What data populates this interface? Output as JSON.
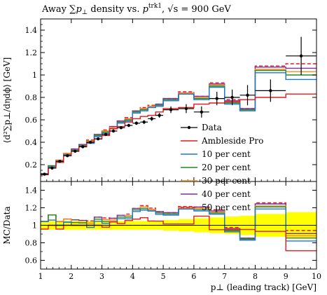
{
  "chart_data": {
    "type": "line",
    "title": "Away ∑p⊥ density vs. p⊥trk1, √s = 900 GeV",
    "title_parts": {
      "lead": "Away ∑",
      "p": "p",
      "sub": "⊥",
      "mid": " density vs. ",
      "sup": "trk1",
      "tail": ", √s = 900 GeV"
    },
    "xlabel": "p⊥ (leading track) [GeV]",
    "ylabel_top": "⟨d²∑p⊥/dηdϕ⟩ [GeV]",
    "ylabel_bottom": "MC/Data",
    "xlim": [
      1,
      10
    ],
    "ylim_top": [
      0.05,
      1.5
    ],
    "ylim_bottom": [
      0.5,
      1.5
    ],
    "legend_placement": "center-right",
    "x_ticks": [
      "1",
      "2",
      "3",
      "4",
      "5",
      "6",
      "7",
      "8",
      "9",
      "10"
    ],
    "y_ticks_top": [
      "0.2",
      "0.4",
      "0.6",
      "0.8",
      "1",
      "1.2",
      "1.4"
    ],
    "y_ticks_bottom": [
      "0.6",
      "0.8",
      "1",
      "1.2",
      "1.4"
    ],
    "bin_edges": [
      1.0,
      1.25,
      1.5,
      1.75,
      2.0,
      2.25,
      2.5,
      2.75,
      3.0,
      3.25,
      3.5,
      3.75,
      4.0,
      4.25,
      4.5,
      4.75,
      5.0,
      5.5,
      6.0,
      6.5,
      7.0,
      7.5,
      8.0,
      9.0,
      10.0
    ],
    "data": {
      "name": "Data",
      "x": [
        1.125,
        1.375,
        1.625,
        1.875,
        2.125,
        2.375,
        2.625,
        2.875,
        3.125,
        3.375,
        3.625,
        3.875,
        4.125,
        4.375,
        4.625,
        4.875,
        5.25,
        5.75,
        6.25,
        6.75,
        7.25,
        7.75,
        8.5,
        9.5
      ],
      "y": [
        0.115,
        0.17,
        0.23,
        0.28,
        0.32,
        0.36,
        0.4,
        0.43,
        0.47,
        0.5,
        0.53,
        0.55,
        0.57,
        0.58,
        0.61,
        0.64,
        0.69,
        0.7,
        0.67,
        0.79,
        0.8,
        0.82,
        0.86,
        1.17
      ],
      "yerr": [
        0.005,
        0.005,
        0.005,
        0.006,
        0.006,
        0.007,
        0.008,
        0.009,
        0.01,
        0.011,
        0.012,
        0.014,
        0.015,
        0.017,
        0.019,
        0.021,
        0.03,
        0.04,
        0.05,
        0.06,
        0.07,
        0.09,
        0.1,
        0.17
      ],
      "ratio_band": [
        0.05,
        0.05,
        0.05,
        0.05,
        0.05,
        0.05,
        0.05,
        0.05,
        0.05,
        0.05,
        0.05,
        0.05,
        0.05,
        0.05,
        0.05,
        0.05,
        0.06,
        0.07,
        0.08,
        0.09,
        0.1,
        0.11,
        0.13,
        0.15
      ],
      "color": "#000000"
    },
    "series": [
      {
        "name": "Ambleside Pro",
        "color": "#e41a1c",
        "dash": false,
        "values": [
          0.11,
          0.17,
          0.22,
          0.28,
          0.32,
          0.36,
          0.4,
          0.43,
          0.46,
          0.52,
          0.54,
          0.58,
          0.61,
          0.63,
          0.64,
          0.67,
          0.7,
          0.71,
          0.74,
          0.75,
          0.76,
          0.78,
          0.8,
          0.83
        ]
      },
      {
        "name": "10 per cent",
        "color": "#1f77d4",
        "dash": false,
        "values": [
          0.12,
          0.18,
          0.23,
          0.29,
          0.32,
          0.36,
          0.39,
          0.45,
          0.48,
          0.52,
          0.57,
          0.59,
          0.66,
          0.68,
          0.71,
          0.72,
          0.77,
          0.83,
          0.78,
          0.89,
          0.74,
          0.68,
          1.02,
          0.96
        ]
      },
      {
        "name": "20 per cent",
        "color": "#228b22",
        "dash": false,
        "values": [
          0.12,
          0.19,
          0.23,
          0.29,
          0.33,
          0.37,
          0.4,
          0.46,
          0.49,
          0.52,
          0.58,
          0.6,
          0.67,
          0.69,
          0.71,
          0.73,
          0.78,
          0.83,
          0.79,
          0.9,
          0.75,
          0.69,
          1.04,
          1.0
        ]
      },
      {
        "name": "30 per cent",
        "color": "#ff8c1a",
        "dash": false,
        "values": [
          0.12,
          0.19,
          0.24,
          0.3,
          0.33,
          0.37,
          0.41,
          0.46,
          0.5,
          0.53,
          0.58,
          0.61,
          0.67,
          0.7,
          0.72,
          0.73,
          0.78,
          0.84,
          0.8,
          0.91,
          0.76,
          0.69,
          1.05,
          1.03
        ]
      },
      {
        "name": "40 per cent",
        "color": "#7b2fa0",
        "dash": false,
        "values": [
          0.12,
          0.19,
          0.24,
          0.3,
          0.34,
          0.38,
          0.41,
          0.47,
          0.5,
          0.54,
          0.59,
          0.61,
          0.68,
          0.7,
          0.72,
          0.74,
          0.79,
          0.84,
          0.81,
          0.92,
          0.77,
          0.7,
          1.07,
          1.06
        ]
      },
      {
        "name": "50 per cent",
        "color": "#e41a1c",
        "dash": true,
        "values": [
          0.12,
          0.19,
          0.24,
          0.3,
          0.34,
          0.38,
          0.42,
          0.47,
          0.51,
          0.54,
          0.59,
          0.62,
          0.68,
          0.71,
          0.73,
          0.74,
          0.79,
          0.85,
          0.81,
          0.93,
          0.78,
          0.7,
          1.08,
          1.1
        ]
      }
    ]
  }
}
